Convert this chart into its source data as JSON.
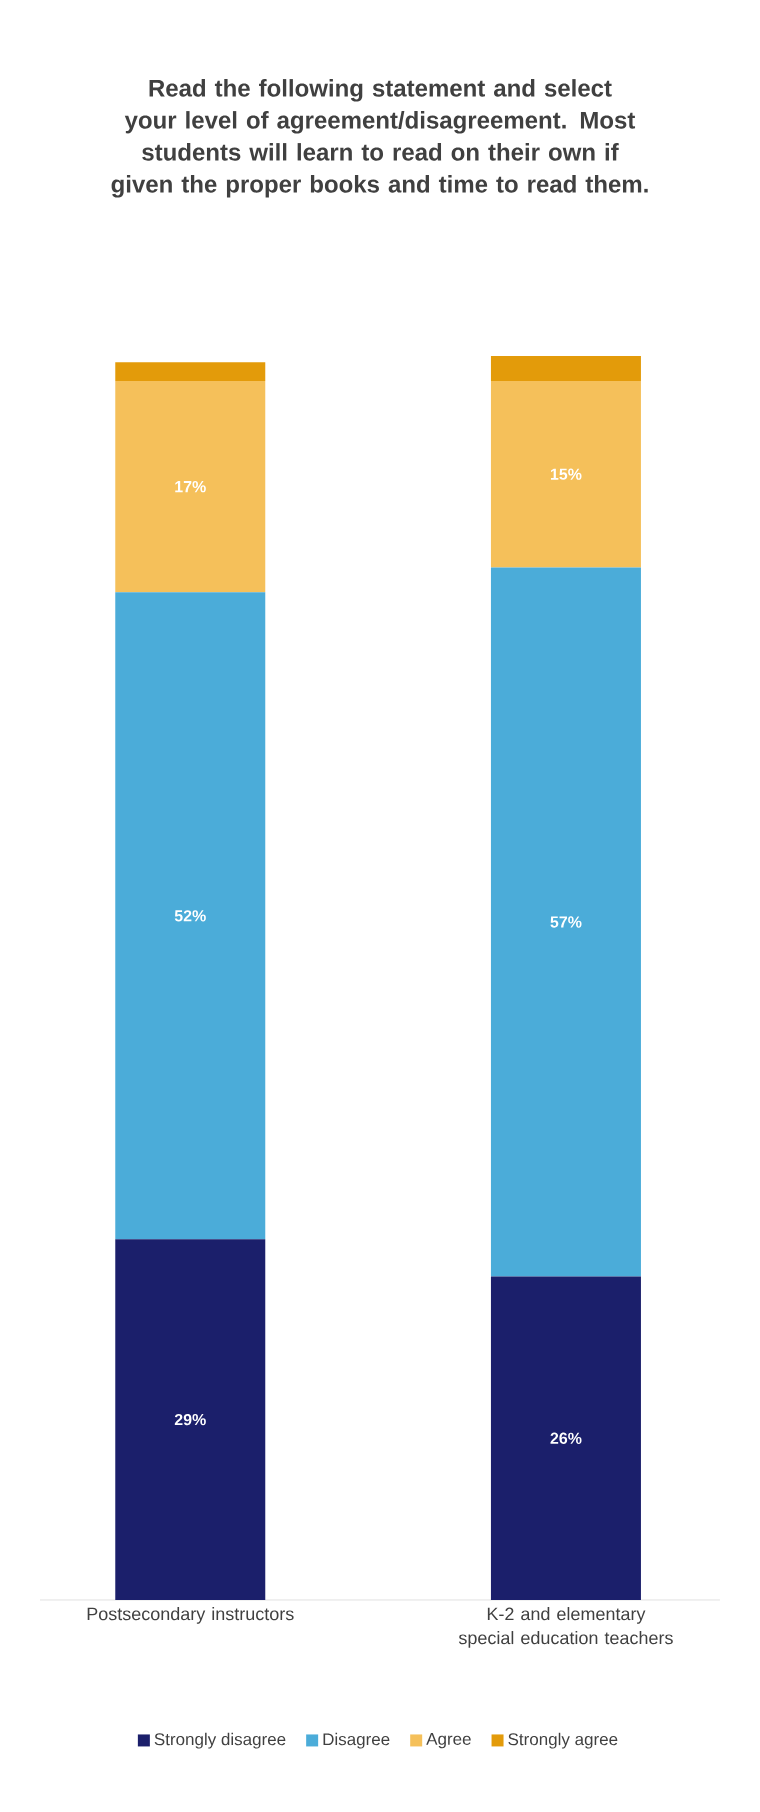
{
  "chart_data": {
    "type": "bar",
    "stacked": true,
    "title": "Read the following statement and select your level of agreement/disagreement. Most students will learn to read on their own if given the proper books and time to read them.",
    "categories": [
      "Postsecondary instructors",
      "K-2 and elementary special education teachers"
    ],
    "series": [
      {
        "name": "Strongly disagree",
        "color": "#1b1f6b",
        "values": [
          29,
          26
        ],
        "value_labels": [
          "29%",
          "26%"
        ]
      },
      {
        "name": "Disagree",
        "color": "#4bacd9",
        "values": [
          52,
          57
        ],
        "value_labels": [
          "52%",
          "57%"
        ]
      },
      {
        "name": "Agree",
        "color": "#f5c05a",
        "values": [
          17,
          15
        ],
        "value_labels": [
          "17%",
          "15%"
        ]
      },
      {
        "name": "Strongly agree",
        "color": "#e39b0a",
        "values": [
          1.5,
          2
        ],
        "value_labels": [
          null,
          null
        ]
      }
    ],
    "legend": "bottom"
  }
}
